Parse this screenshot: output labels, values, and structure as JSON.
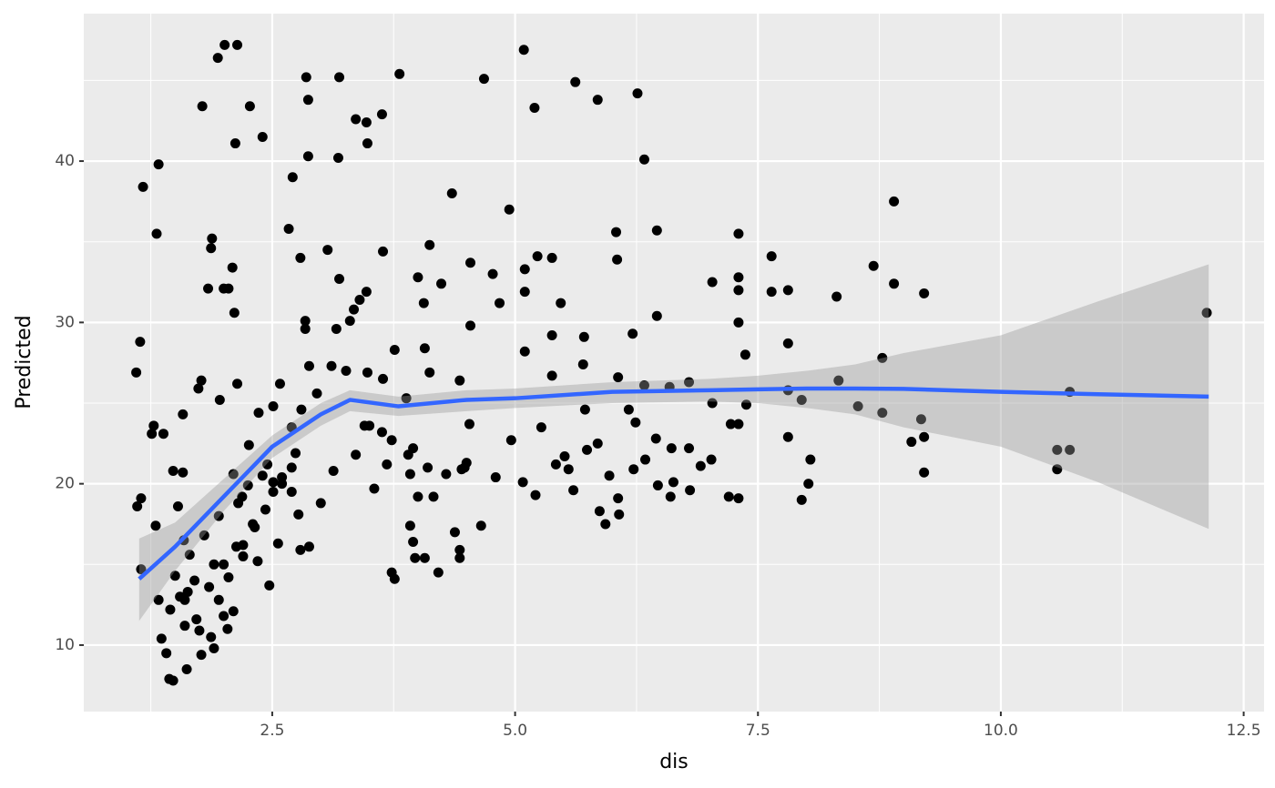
{
  "chart_data": {
    "type": "scatter",
    "x_label": "dis",
    "y_label": "Predicted",
    "xlim": [
      0.56,
      12.71
    ],
    "ylim": [
      5.88,
      49.14
    ],
    "xticks": [
      {
        "value": 2.5,
        "label": "2.5"
      },
      {
        "value": 5,
        "label": "5.0"
      },
      {
        "value": 7.5,
        "label": "7.5"
      },
      {
        "value": 10,
        "label": "10.0"
      },
      {
        "value": 12.5,
        "label": "12.5"
      }
    ],
    "yticks": [
      10,
      20,
      30,
      40
    ],
    "xminorticks": [
      1.25,
      3.75,
      6.25,
      8.75,
      11.25
    ],
    "yminorticks": [
      15,
      25,
      35,
      45
    ],
    "grid": true,
    "points": {
      "color": "#000000",
      "x": [
        1.1,
        1.14,
        1.17,
        1.11,
        1.15,
        1.15,
        1.28,
        1.26,
        1.31,
        1.33,
        1.38,
        1.3,
        1.33,
        1.36,
        1.41,
        1.44,
        1.48,
        1.48,
        1.58,
        1.58,
        1.53,
        1.59,
        1.63,
        1.62,
        1.74,
        1.78,
        1.77,
        1.84,
        1.88,
        1.87,
        1.94,
        2.01,
        2.14,
        2.0,
        2.05,
        2.09,
        2.11,
        2.12,
        2.14,
        1.96,
        2.27,
        2.4,
        2.36,
        2.26,
        2.19,
        2.1,
        2.04,
        1.87,
        1.77,
        1.9,
        1.95,
        1.72,
        1.6,
        2.0,
        2.13,
        2.32,
        2.43,
        2.51,
        2.51,
        2.6,
        2.47,
        2.56,
        2.51,
        2.58,
        2.67,
        2.71,
        2.79,
        2.85,
        2.87,
        2.87,
        2.84,
        2.84,
        2.88,
        2.8,
        2.7,
        2.74,
        2.7,
        2.77,
        2.79,
        2.88,
        2.96,
        3.0,
        3.07,
        3.13,
        3.18,
        3.19,
        3.19,
        3.16,
        3.11,
        3.26,
        3.3,
        3.34,
        3.36,
        3.4,
        3.47,
        3.47,
        3.48,
        3.48,
        3.63,
        3.64,
        3.64,
        3.36,
        3.45,
        3.55,
        3.63,
        3.68,
        3.73,
        3.76,
        3.73,
        3.76,
        3.81,
        3.88,
        3.95,
        3.92,
        3.92,
        3.95,
        3.97,
        4.0,
        4.06,
        4.07,
        4.12,
        4.12,
        4.07,
        4.16,
        4.24,
        4.21,
        4.29,
        4.35,
        4.38,
        4.43,
        4.43,
        4.43,
        4.48,
        4.54,
        4.54,
        4.53,
        4.65,
        4.68,
        4.77,
        4.8,
        4.84,
        4.94,
        4.96,
        5.09,
        5.1,
        5.1,
        5.1,
        5.08,
        5.2,
        5.21,
        5.23,
        5.27,
        5.38,
        5.38,
        5.38,
        5.42,
        5.47,
        5.51,
        5.55,
        5.6,
        5.62,
        5.7,
        5.71,
        5.72,
        5.74,
        5.85,
        5.85,
        5.87,
        5.93,
        5.97,
        6.04,
        6.05,
        6.06,
        6.06,
        6.07,
        6.17,
        6.21,
        6.22,
        6.26,
        6.24,
        6.33,
        6.33,
        6.34,
        6.45,
        6.46,
        6.46,
        6.47,
        6.59,
        6.61,
        6.6,
        6.63,
        6.79,
        6.79,
        6.8,
        6.91,
        7.03,
        7.03,
        7.02,
        7.2,
        7.22,
        7.3,
        7.3,
        7.3,
        7.3,
        7.3,
        7.3,
        7.37,
        7.38,
        7.64,
        7.64,
        7.81,
        7.81,
        7.81,
        7.81,
        7.95,
        7.95,
        8.02,
        8.04,
        8.31,
        8.33,
        8.53,
        8.69,
        8.78,
        8.78,
        8.9,
        8.9,
        9.08,
        9.18,
        9.21,
        9.21,
        9.21,
        10.58,
        10.58,
        10.71,
        10.71,
        12.12,
        2.05,
        2.2,
        1.9,
        1.7,
        1.8,
        2.3,
        2.15,
        1.95,
        1.65,
        1.5,
        1.55,
        2.4,
        2.45,
        2.6,
        2.7,
        2.25,
        2.1,
        1.85,
        2.0,
        1.75,
        1.6,
        1.45,
        2.2,
        2.35,
        3.5,
        3.9,
        4.0,
        4.1,
        4.45,
        4.5
      ],
      "y": [
        26.9,
        28.8,
        38.4,
        18.6,
        19.1,
        14.7,
        23.6,
        23.1,
        35.5,
        39.8,
        23.1,
        17.4,
        12.8,
        10.4,
        9.5,
        7.9,
        7.8,
        20.8,
        24.3,
        20.7,
        18.6,
        16.5,
        13.3,
        8.5,
        25.9,
        43.4,
        26.4,
        32.1,
        35.2,
        34.6,
        46.4,
        47.2,
        47.2,
        32.1,
        32.1,
        33.4,
        30.6,
        41.1,
        26.2,
        25.2,
        43.4,
        41.5,
        24.4,
        22.4,
        19.2,
        12.1,
        11.0,
        10.5,
        9.4,
        9.8,
        12.8,
        11.6,
        12.8,
        15.0,
        16.1,
        17.3,
        18.4,
        19.5,
        20.1,
        20.4,
        13.7,
        16.3,
        24.8,
        26.2,
        35.8,
        39.0,
        34.0,
        45.2,
        43.8,
        40.3,
        30.1,
        29.6,
        27.3,
        24.6,
        23.5,
        21.9,
        19.5,
        18.1,
        15.9,
        16.1,
        25.6,
        18.8,
        34.5,
        20.8,
        40.2,
        45.2,
        32.7,
        29.6,
        27.3,
        27.0,
        30.1,
        30.8,
        42.6,
        31.4,
        31.9,
        42.4,
        41.1,
        26.9,
        42.9,
        34.4,
        26.5,
        21.8,
        23.6,
        19.7,
        23.2,
        21.2,
        22.7,
        28.3,
        14.5,
        14.1,
        45.4,
        25.3,
        22.2,
        20.6,
        17.4,
        16.4,
        15.4,
        32.8,
        31.2,
        28.4,
        34.8,
        26.9,
        15.4,
        19.2,
        32.4,
        14.5,
        20.6,
        38.0,
        17.0,
        26.4,
        15.9,
        15.4,
        21.0,
        33.7,
        29.8,
        23.7,
        17.4,
        45.1,
        33.0,
        20.4,
        31.2,
        37.0,
        22.7,
        46.9,
        33.3,
        31.9,
        28.2,
        20.1,
        43.3,
        19.3,
        34.1,
        23.5,
        34.0,
        29.2,
        26.7,
        21.2,
        31.2,
        21.7,
        20.9,
        19.6,
        44.9,
        27.4,
        29.1,
        24.6,
        22.1,
        43.8,
        22.5,
        18.3,
        17.5,
        20.5,
        35.6,
        33.9,
        26.6,
        19.1,
        18.1,
        24.6,
        29.3,
        20.9,
        44.2,
        23.8,
        40.1,
        26.1,
        21.5,
        22.8,
        30.4,
        35.7,
        19.9,
        26.0,
        22.2,
        19.2,
        20.1,
        26.3,
        22.2,
        19.6,
        21.1,
        32.5,
        25.0,
        21.5,
        19.2,
        23.7,
        35.5,
        32.8,
        32.0,
        30.0,
        23.7,
        19.1,
        28.0,
        24.9,
        34.1,
        31.9,
        32.0,
        28.7,
        25.8,
        22.9,
        25.2,
        19.0,
        20.0,
        21.5,
        31.6,
        26.4,
        24.8,
        33.5,
        27.8,
        24.4,
        32.4,
        37.5,
        22.6,
        24.0,
        22.9,
        20.7,
        31.8,
        20.9,
        22.1,
        22.1,
        25.7,
        30.6,
        14.2,
        15.5,
        15.0,
        14.0,
        16.8,
        17.5,
        18.8,
        18.0,
        15.6,
        14.3,
        13.0,
        20.5,
        21.2,
        20.0,
        21.0,
        19.9,
        20.6,
        13.6,
        11.8,
        10.9,
        11.2,
        12.2,
        16.2,
        15.2,
        23.6,
        21.8,
        19.2,
        21.0,
        20.9,
        21.3
      ]
    },
    "smooth": {
      "color": "#3366ff",
      "band_color": "#999999",
      "x": [
        1.13,
        1.5,
        2.0,
        2.5,
        3.0,
        3.3,
        3.8,
        4.5,
        5.0,
        6.0,
        7.0,
        7.5,
        8.0,
        8.5,
        9.0,
        10.0,
        11.0,
        12.14
      ],
      "y": [
        14.1,
        16.1,
        19.2,
        22.3,
        24.3,
        25.2,
        24.8,
        25.2,
        25.3,
        25.7,
        25.8,
        25.85,
        25.9,
        25.9,
        25.88,
        25.7,
        25.55,
        25.4
      ],
      "lower": [
        11.5,
        14.6,
        18.3,
        21.6,
        23.6,
        24.5,
        24.2,
        24.5,
        24.7,
        25.0,
        25.1,
        25.0,
        24.7,
        24.3,
        23.5,
        22.3,
        20.1,
        17.2
      ],
      "upper": [
        16.6,
        17.6,
        20.3,
        23.0,
        25.0,
        25.8,
        25.4,
        25.8,
        25.9,
        26.3,
        26.5,
        26.7,
        27.0,
        27.4,
        28.1,
        29.2,
        31.3,
        33.6
      ]
    }
  }
}
